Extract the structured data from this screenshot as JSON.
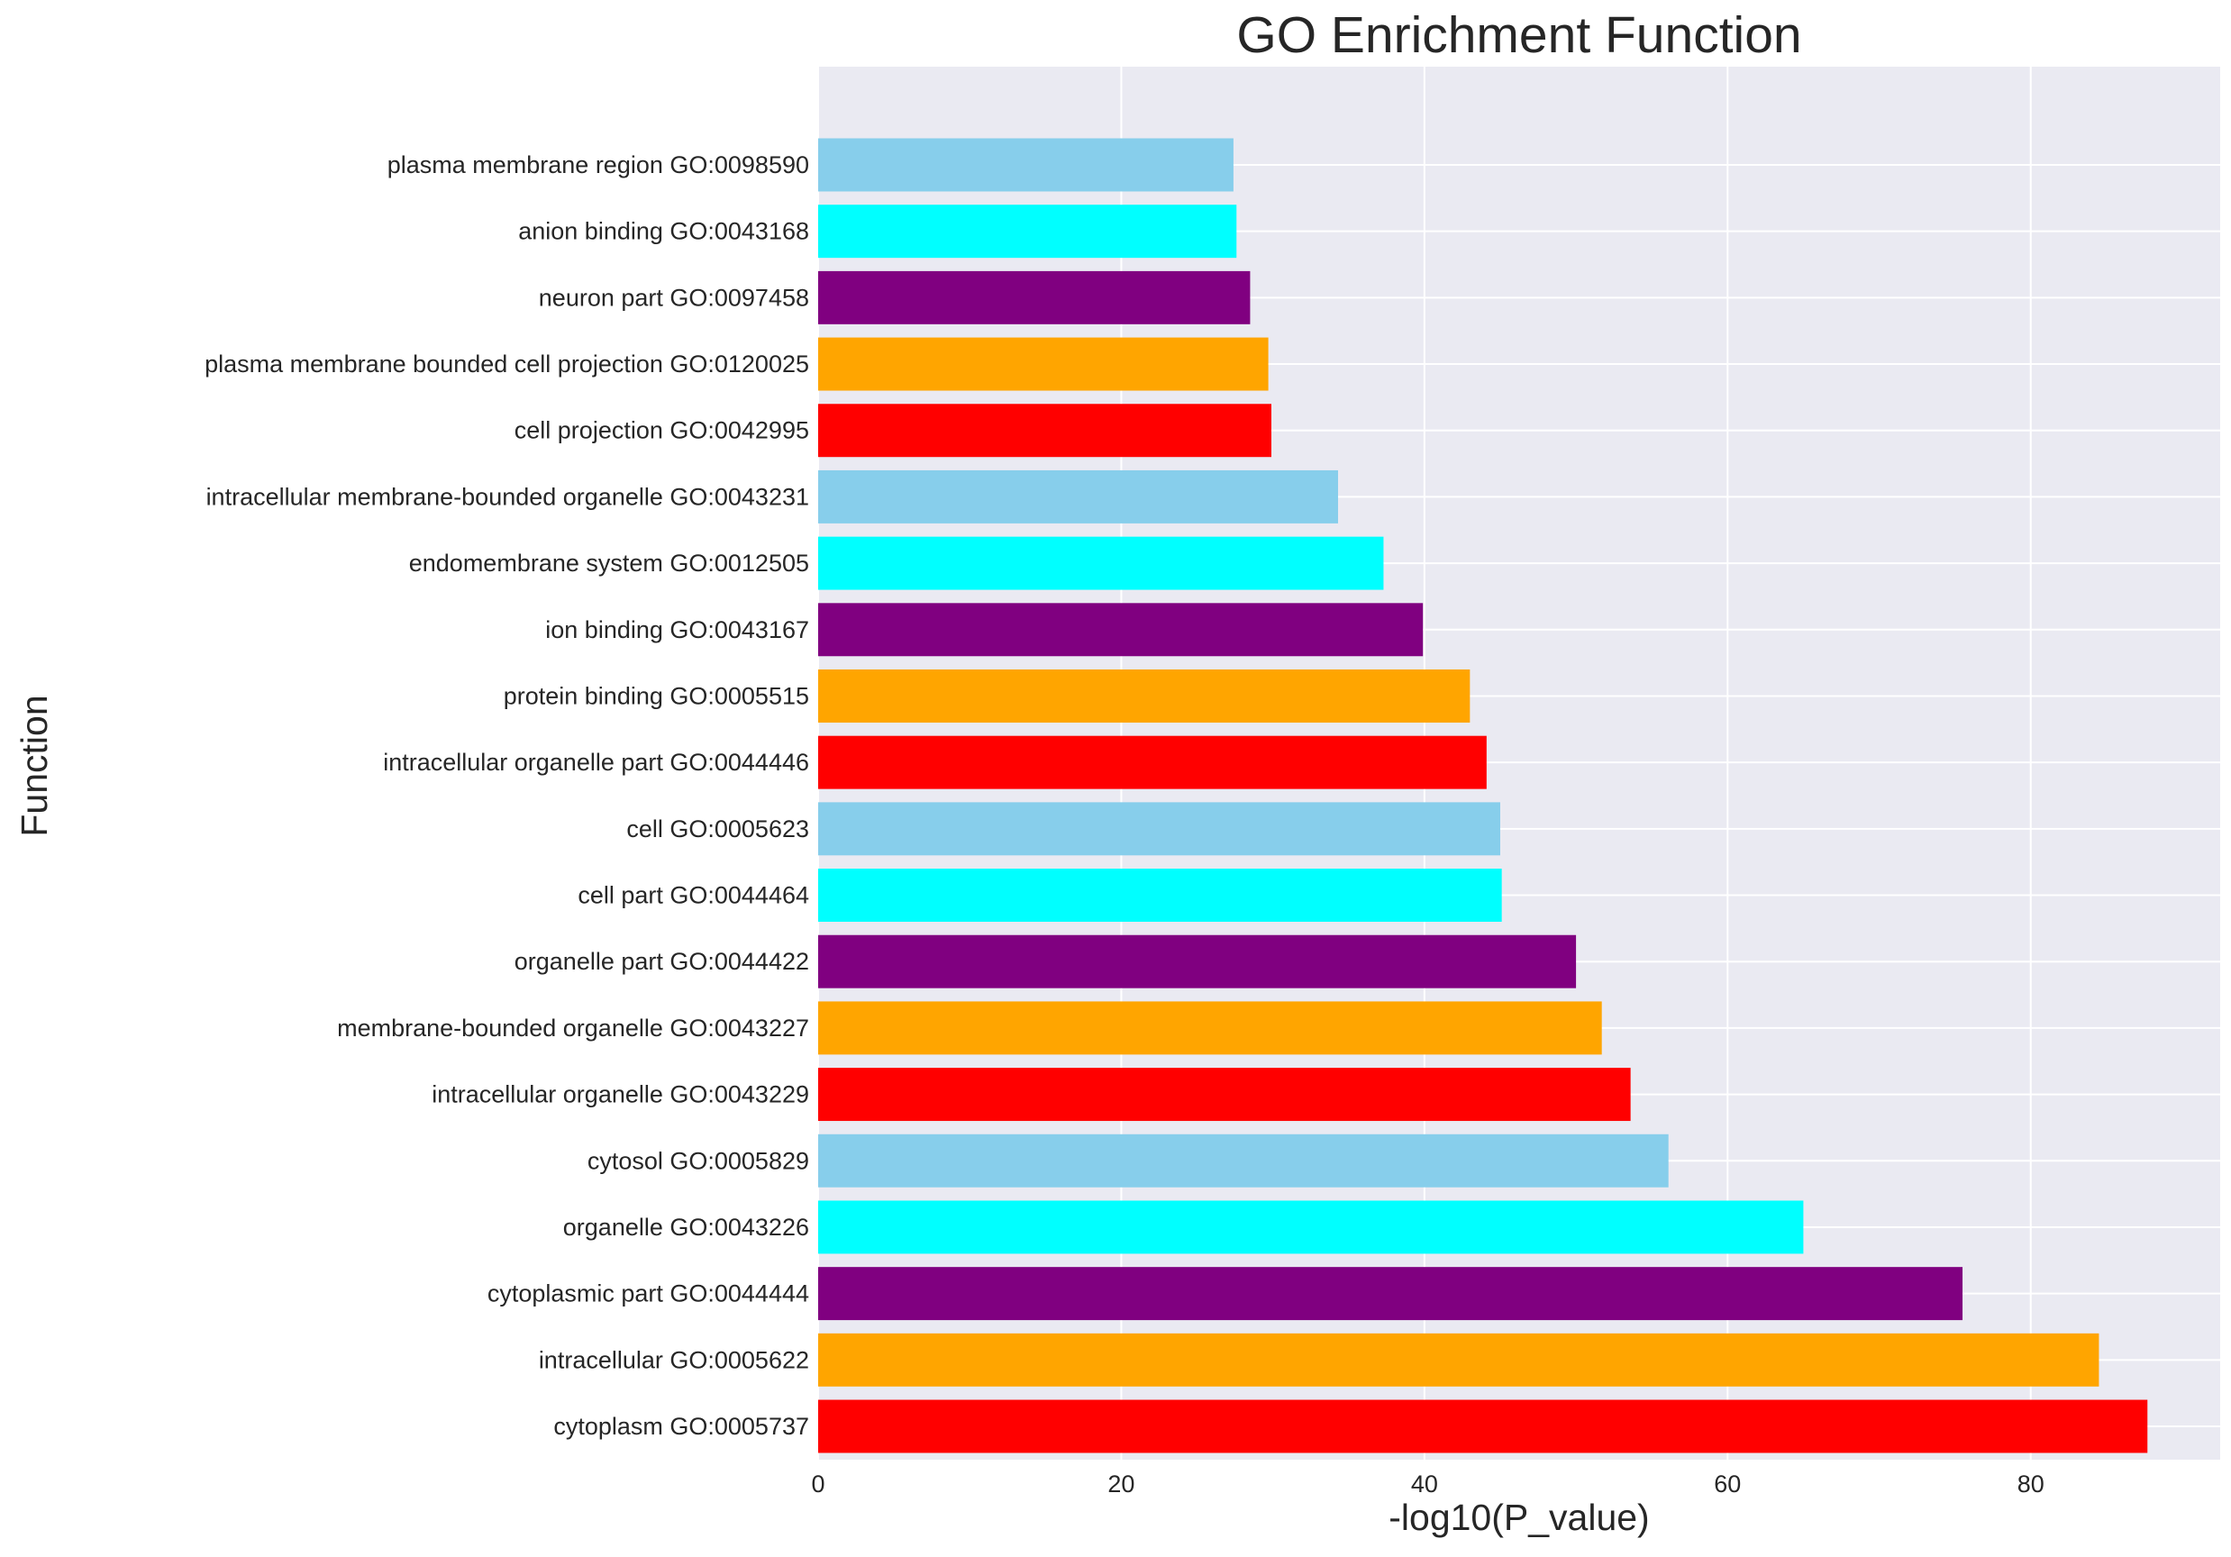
{
  "chart_data": {
    "type": "bar",
    "orientation": "horizontal",
    "title": "GO Enrichment Function",
    "xlabel": "-log10(P_value)",
    "ylabel": "Function",
    "xlim": [
      0,
      92.5
    ],
    "xticks": [
      "0",
      "20",
      "40",
      "60",
      "80"
    ],
    "grid": true,
    "background": "#eaeaf2",
    "categories": [
      {
        "term": "cytoplasm",
        "go_id": "GO:0005737",
        "value": 87.7,
        "color": "#ff0000"
      },
      {
        "term": "intracellular",
        "go_id": "GO:0005622",
        "value": 84.5,
        "color": "#ffa500"
      },
      {
        "term": "cytoplasmic part",
        "go_id": "GO:0044444",
        "value": 75.5,
        "color": "#800080"
      },
      {
        "term": "organelle",
        "go_id": "GO:0043226",
        "value": 65.0,
        "color": "#00ffff"
      },
      {
        "term": "cytosol",
        "go_id": "GO:0005829",
        "value": 56.1,
        "color": "#87ceeb"
      },
      {
        "term": "intracellular organelle",
        "go_id": "GO:0043229",
        "value": 53.6,
        "color": "#ff0000"
      },
      {
        "term": "membrane-bounded organelle",
        "go_id": "GO:0043227",
        "value": 51.7,
        "color": "#ffa500"
      },
      {
        "term": "organelle part",
        "go_id": "GO:0044422",
        "value": 50.0,
        "color": "#800080"
      },
      {
        "term": "cell part",
        "go_id": "GO:0044464",
        "value": 45.1,
        "color": "#00ffff"
      },
      {
        "term": "cell",
        "go_id": "GO:0005623",
        "value": 45.0,
        "color": "#87ceeb"
      },
      {
        "term": "intracellular organelle part",
        "go_id": "GO:0044446",
        "value": 44.1,
        "color": "#ff0000"
      },
      {
        "term": "protein binding",
        "go_id": "GO:0005515",
        "value": 43.0,
        "color": "#ffa500"
      },
      {
        "term": "ion binding",
        "go_id": "GO:0043167",
        "value": 39.9,
        "color": "#800080"
      },
      {
        "term": "endomembrane system",
        "go_id": "GO:0012505",
        "value": 37.3,
        "color": "#00ffff"
      },
      {
        "term": "intracellular membrane-bounded organelle",
        "go_id": "GO:0043231",
        "value": 34.3,
        "color": "#87ceeb"
      },
      {
        "term": "cell projection",
        "go_id": "GO:0042995",
        "value": 29.9,
        "color": "#ff0000"
      },
      {
        "term": "plasma membrane bounded cell projection",
        "go_id": "GO:0120025",
        "value": 29.7,
        "color": "#ffa500"
      },
      {
        "term": "neuron part",
        "go_id": "GO:0097458",
        "value": 28.5,
        "color": "#800080"
      },
      {
        "term": "anion binding",
        "go_id": "GO:0043168",
        "value": 27.6,
        "color": "#00ffff"
      },
      {
        "term": "plasma membrane region",
        "go_id": "GO:0098590",
        "value": 27.4,
        "color": "#87ceeb"
      }
    ]
  }
}
